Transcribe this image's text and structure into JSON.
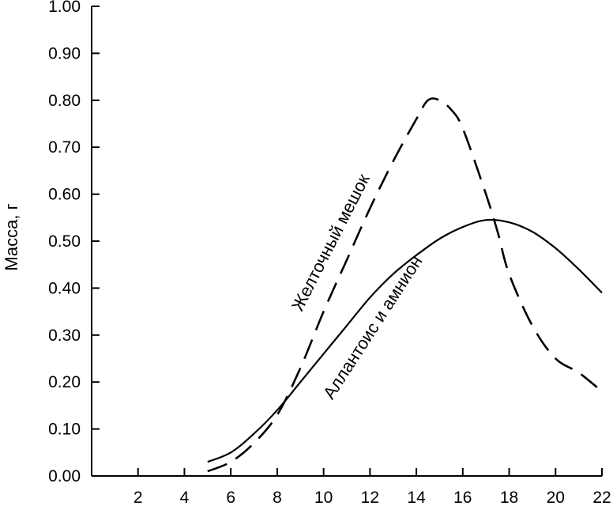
{
  "chart_data": {
    "type": "line",
    "title": "",
    "xlabel": "",
    "ylabel": "Масса, г",
    "xlim": [
      0,
      22
    ],
    "ylim": [
      0,
      1.0
    ],
    "x_ticks": [
      "2",
      "4",
      "6",
      "8",
      "10",
      "12",
      "14",
      "16",
      "18",
      "20",
      "22"
    ],
    "y_ticks": [
      "0.00",
      "0.10",
      "0.20",
      "0.30",
      "0.40",
      "0.50",
      "0.60",
      "0.70",
      "0.80",
      "0.90",
      "1.00"
    ],
    "grid": false,
    "series": [
      {
        "name": "Аллантоис и амнион",
        "style": "solid",
        "color": "#000000",
        "x": [
          5,
          6,
          7,
          8,
          9,
          10,
          11,
          12,
          13,
          14,
          15,
          16,
          17,
          18,
          19,
          20,
          21,
          22
        ],
        "y": [
          0.03,
          0.05,
          0.09,
          0.14,
          0.2,
          0.26,
          0.32,
          0.38,
          0.43,
          0.47,
          0.505,
          0.53,
          0.545,
          0.54,
          0.52,
          0.485,
          0.44,
          0.39
        ]
      },
      {
        "name": "Желточный мешок",
        "style": "dashed",
        "color": "#000000",
        "x": [
          5,
          6,
          7,
          8,
          9,
          10,
          11,
          12,
          13,
          14,
          14.5,
          15,
          15.5,
          16,
          17,
          17.5,
          18,
          19,
          20,
          21,
          22
        ],
        "y": [
          0.01,
          0.03,
          0.07,
          0.13,
          0.23,
          0.35,
          0.46,
          0.57,
          0.67,
          0.76,
          0.8,
          0.8,
          0.78,
          0.74,
          0.6,
          0.52,
          0.43,
          0.32,
          0.25,
          0.22,
          0.18
        ]
      }
    ],
    "annotations": [
      {
        "text": "Желточный мешок",
        "series": "Желточный мешок"
      },
      {
        "text": "Аллантоис  и  амнион",
        "series": "Аллантоис и амнион"
      }
    ]
  }
}
